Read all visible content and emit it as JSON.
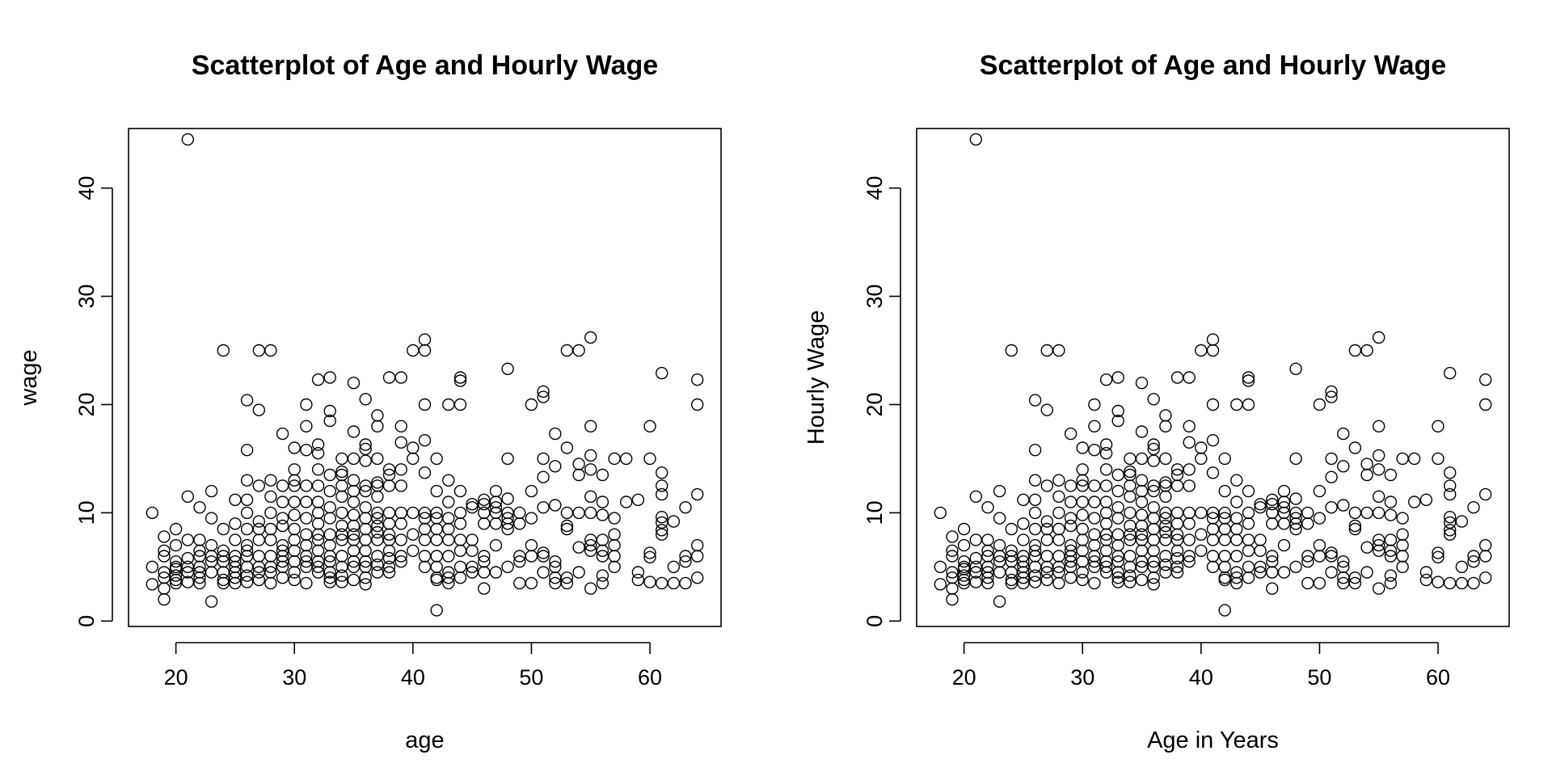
{
  "chart_data": [
    {
      "type": "scatter",
      "title": "Scatterplot of Age and Hourly Wage",
      "xlabel": "age",
      "ylabel": "wage",
      "xlim": [
        16,
        66
      ],
      "ylim": [
        -0.5,
        45.5
      ],
      "xticks": [
        20,
        30,
        40,
        50,
        60
      ],
      "yticks": [
        0,
        10,
        20,
        30,
        40
      ],
      "grid": false,
      "points_ref": "shared.points"
    },
    {
      "type": "scatter",
      "title": "Scatterplot of Age and Hourly Wage",
      "xlabel": "Age in Years",
      "ylabel": "Hourly Wage",
      "xlim": [
        16,
        66
      ],
      "ylim": [
        -0.5,
        45.5
      ],
      "xticks": [
        20,
        30,
        40,
        50,
        60
      ],
      "yticks": [
        0,
        10,
        20,
        30,
        40
      ],
      "grid": false,
      "points_ref": "shared.points"
    }
  ],
  "shared": {
    "points": [
      [
        18,
        10.0
      ],
      [
        18,
        5.0
      ],
      [
        18,
        3.4
      ],
      [
        19,
        7.8
      ],
      [
        19,
        6.5
      ],
      [
        19,
        6.0
      ],
      [
        19,
        4.5
      ],
      [
        19,
        4.0
      ],
      [
        19,
        3.0
      ],
      [
        19,
        2.0
      ],
      [
        20,
        8.5
      ],
      [
        20,
        7.0
      ],
      [
        20,
        5.5
      ],
      [
        20,
        5.0
      ],
      [
        20,
        4.8
      ],
      [
        20,
        4.2
      ],
      [
        20,
        3.8
      ],
      [
        20,
        3.5
      ],
      [
        21,
        44.5
      ],
      [
        21,
        11.5
      ],
      [
        21,
        7.5
      ],
      [
        21,
        5.8
      ],
      [
        21,
        5.0
      ],
      [
        21,
        4.5
      ],
      [
        21,
        3.6
      ],
      [
        22,
        10.5
      ],
      [
        22,
        7.5
      ],
      [
        22,
        6.5
      ],
      [
        22,
        6.0
      ],
      [
        22,
        5.0
      ],
      [
        22,
        4.5
      ],
      [
        22,
        4.0
      ],
      [
        22,
        3.5
      ],
      [
        23,
        12.0
      ],
      [
        23,
        9.5
      ],
      [
        23,
        7.0
      ],
      [
        23,
        6.0
      ],
      [
        23,
        5.5
      ],
      [
        23,
        4.5
      ],
      [
        23,
        1.8
      ],
      [
        24,
        25.0
      ],
      [
        24,
        8.5
      ],
      [
        24,
        6.5
      ],
      [
        24,
        6.0
      ],
      [
        24,
        5.5
      ],
      [
        24,
        4.5
      ],
      [
        24,
        3.8
      ],
      [
        24,
        3.5
      ],
      [
        25,
        11.2
      ],
      [
        25,
        9.0
      ],
      [
        25,
        7.5
      ],
      [
        25,
        6.0
      ],
      [
        25,
        5.5
      ],
      [
        25,
        5.0
      ],
      [
        25,
        4.5
      ],
      [
        25,
        4.0
      ],
      [
        25,
        3.5
      ],
      [
        26,
        20.4
      ],
      [
        26,
        15.8
      ],
      [
        26,
        13.0
      ],
      [
        26,
        11.2
      ],
      [
        26,
        10.0
      ],
      [
        26,
        8.5
      ],
      [
        26,
        7.0
      ],
      [
        26,
        6.5
      ],
      [
        26,
        6.0
      ],
      [
        26,
        5.0
      ],
      [
        26,
        4.2
      ],
      [
        26,
        3.6
      ],
      [
        27,
        25.0
      ],
      [
        27,
        19.5
      ],
      [
        27,
        12.5
      ],
      [
        27,
        9.2
      ],
      [
        27,
        8.5
      ],
      [
        27,
        7.5
      ],
      [
        27,
        6.0
      ],
      [
        27,
        5.0
      ],
      [
        27,
        4.5
      ],
      [
        27,
        3.8
      ],
      [
        28,
        25.0
      ],
      [
        28,
        13.0
      ],
      [
        28,
        11.5
      ],
      [
        28,
        10.0
      ],
      [
        28,
        8.5
      ],
      [
        28,
        7.5
      ],
      [
        28,
        6.0
      ],
      [
        28,
        5.0
      ],
      [
        28,
        4.5
      ],
      [
        28,
        3.5
      ],
      [
        29,
        17.3
      ],
      [
        29,
        12.5
      ],
      [
        29,
        11.0
      ],
      [
        29,
        9.5
      ],
      [
        29,
        8.8
      ],
      [
        29,
        7.0
      ],
      [
        29,
        6.5
      ],
      [
        29,
        6.0
      ],
      [
        29,
        5.5
      ],
      [
        29,
        5.0
      ],
      [
        29,
        4.0
      ],
      [
        30,
        16.0
      ],
      [
        30,
        14.0
      ],
      [
        30,
        13.0
      ],
      [
        30,
        12.5
      ],
      [
        30,
        11.0
      ],
      [
        30,
        9.8
      ],
      [
        30,
        8.5
      ],
      [
        30,
        7.5
      ],
      [
        30,
        6.5
      ],
      [
        30,
        5.5
      ],
      [
        30,
        4.5
      ],
      [
        30,
        3.8
      ],
      [
        31,
        20.0
      ],
      [
        31,
        18.0
      ],
      [
        31,
        15.8
      ],
      [
        31,
        12.5
      ],
      [
        31,
        11.0
      ],
      [
        31,
        9.5
      ],
      [
        31,
        8.0
      ],
      [
        31,
        7.0
      ],
      [
        31,
        6.0
      ],
      [
        31,
        5.5
      ],
      [
        31,
        5.0
      ],
      [
        31,
        3.5
      ],
      [
        32,
        22.3
      ],
      [
        32,
        16.3
      ],
      [
        32,
        15.5
      ],
      [
        32,
        14.0
      ],
      [
        32,
        12.5
      ],
      [
        32,
        11.0
      ],
      [
        32,
        10.0
      ],
      [
        32,
        9.0
      ],
      [
        32,
        8.0
      ],
      [
        32,
        7.5
      ],
      [
        32,
        6.5
      ],
      [
        32,
        5.5
      ],
      [
        32,
        5.0
      ],
      [
        32,
        4.5
      ],
      [
        33,
        22.5
      ],
      [
        33,
        19.4
      ],
      [
        33,
        18.5
      ],
      [
        33,
        13.5
      ],
      [
        33,
        12.0
      ],
      [
        33,
        10.5
      ],
      [
        33,
        9.5
      ],
      [
        33,
        8.0
      ],
      [
        33,
        7.0
      ],
      [
        33,
        6.0
      ],
      [
        33,
        5.5
      ],
      [
        33,
        4.5
      ],
      [
        33,
        4.0
      ],
      [
        33,
        3.6
      ],
      [
        34,
        15.0
      ],
      [
        34,
        13.8
      ],
      [
        34,
        13.5
      ],
      [
        34,
        12.5
      ],
      [
        34,
        11.5
      ],
      [
        34,
        10.0
      ],
      [
        34,
        8.8
      ],
      [
        34,
        8.0
      ],
      [
        34,
        7.5
      ],
      [
        34,
        6.0
      ],
      [
        34,
        5.0
      ],
      [
        34,
        4.2
      ],
      [
        34,
        3.6
      ],
      [
        35,
        22.0
      ],
      [
        35,
        17.5
      ],
      [
        35,
        15.0
      ],
      [
        35,
        13.0
      ],
      [
        35,
        12.0
      ],
      [
        35,
        11.0
      ],
      [
        35,
        9.8
      ],
      [
        35,
        8.8
      ],
      [
        35,
        8.0
      ],
      [
        35,
        7.5
      ],
      [
        35,
        6.5
      ],
      [
        35,
        5.5
      ],
      [
        35,
        5.0
      ],
      [
        35,
        3.8
      ],
      [
        36,
        20.5
      ],
      [
        36,
        16.3
      ],
      [
        36,
        15.9
      ],
      [
        36,
        14.8
      ],
      [
        36,
        12.5
      ],
      [
        36,
        12.0
      ],
      [
        36,
        10.5
      ],
      [
        36,
        9.5
      ],
      [
        36,
        8.5
      ],
      [
        36,
        7.5
      ],
      [
        36,
        6.5
      ],
      [
        36,
        5.5
      ],
      [
        36,
        5.0
      ],
      [
        36,
        4.0
      ],
      [
        36,
        3.4
      ],
      [
        37,
        19.0
      ],
      [
        37,
        18.0
      ],
      [
        37,
        15.0
      ],
      [
        37,
        12.8
      ],
      [
        37,
        12.5
      ],
      [
        37,
        11.5
      ],
      [
        37,
        10.0
      ],
      [
        37,
        9.5
      ],
      [
        37,
        8.8
      ],
      [
        37,
        8.2
      ],
      [
        37,
        7.5
      ],
      [
        37,
        6.0
      ],
      [
        37,
        5.2
      ],
      [
        37,
        4.5
      ],
      [
        38,
        22.5
      ],
      [
        38,
        14.0
      ],
      [
        38,
        13.5
      ],
      [
        38,
        12.5
      ],
      [
        38,
        10.0
      ],
      [
        38,
        9.0
      ],
      [
        38,
        8.0
      ],
      [
        38,
        7.5
      ],
      [
        38,
        6.5
      ],
      [
        38,
        5.8
      ],
      [
        38,
        5.0
      ],
      [
        38,
        4.5
      ],
      [
        39,
        22.5
      ],
      [
        39,
        18.0
      ],
      [
        39,
        16.5
      ],
      [
        39,
        14.0
      ],
      [
        39,
        12.5
      ],
      [
        39,
        10.0
      ],
      [
        39,
        9.0
      ],
      [
        39,
        7.5
      ],
      [
        39,
        6.0
      ],
      [
        39,
        5.5
      ],
      [
        40,
        25.0
      ],
      [
        40,
        16.0
      ],
      [
        40,
        15.0
      ],
      [
        40,
        10.0
      ],
      [
        40,
        8.0
      ],
      [
        40,
        6.5
      ],
      [
        41,
        26.0
      ],
      [
        41,
        25.0
      ],
      [
        41,
        20.0
      ],
      [
        41,
        16.7
      ],
      [
        41,
        13.7
      ],
      [
        41,
        10.0
      ],
      [
        41,
        9.5
      ],
      [
        41,
        8.5
      ],
      [
        41,
        7.5
      ],
      [
        41,
        6.0
      ],
      [
        41,
        5.0
      ],
      [
        42,
        15.0
      ],
      [
        42,
        12.0
      ],
      [
        42,
        10.0
      ],
      [
        42,
        9.5
      ],
      [
        42,
        8.5
      ],
      [
        42,
        7.5
      ],
      [
        42,
        6.0
      ],
      [
        42,
        5.0
      ],
      [
        42,
        4.0
      ],
      [
        42,
        3.8
      ],
      [
        42,
        1.0
      ],
      [
        43,
        20.0
      ],
      [
        43,
        13.0
      ],
      [
        43,
        11.0
      ],
      [
        43,
        9.5
      ],
      [
        43,
        8.5
      ],
      [
        43,
        7.5
      ],
      [
        43,
        6.0
      ],
      [
        43,
        4.5
      ],
      [
        43,
        4.0
      ],
      [
        43,
        3.5
      ],
      [
        44,
        22.5
      ],
      [
        44,
        22.2
      ],
      [
        44,
        20.0
      ],
      [
        44,
        12.0
      ],
      [
        44,
        10.0
      ],
      [
        44,
        9.0
      ],
      [
        44,
        7.5
      ],
      [
        44,
        6.5
      ],
      [
        44,
        5.0
      ],
      [
        44,
        4.0
      ],
      [
        45,
        10.8
      ],
      [
        45,
        10.5
      ],
      [
        45,
        7.5
      ],
      [
        45,
        6.5
      ],
      [
        45,
        5.0
      ],
      [
        45,
        4.5
      ],
      [
        46,
        11.2
      ],
      [
        46,
        10.8
      ],
      [
        46,
        10.0
      ],
      [
        46,
        9.0
      ],
      [
        46,
        6.0
      ],
      [
        46,
        5.5
      ],
      [
        46,
        4.5
      ],
      [
        46,
        3.0
      ],
      [
        47,
        12.0
      ],
      [
        47,
        11.0
      ],
      [
        47,
        10.5
      ],
      [
        47,
        10.0
      ],
      [
        47,
        9.0
      ],
      [
        47,
        7.0
      ],
      [
        47,
        4.5
      ],
      [
        48,
        23.3
      ],
      [
        48,
        15.0
      ],
      [
        48,
        11.3
      ],
      [
        48,
        10.0
      ],
      [
        48,
        9.5
      ],
      [
        48,
        9.0
      ],
      [
        48,
        8.5
      ],
      [
        48,
        5.0
      ],
      [
        49,
        10.0
      ],
      [
        49,
        9.0
      ],
      [
        49,
        6.0
      ],
      [
        49,
        5.5
      ],
      [
        49,
        3.5
      ],
      [
        50,
        20.0
      ],
      [
        50,
        12.0
      ],
      [
        50,
        9.5
      ],
      [
        50,
        7.0
      ],
      [
        50,
        6.0
      ],
      [
        50,
        3.5
      ],
      [
        51,
        21.2
      ],
      [
        51,
        20.7
      ],
      [
        51,
        15.0
      ],
      [
        51,
        13.3
      ],
      [
        51,
        10.5
      ],
      [
        51,
        6.3
      ],
      [
        51,
        6.0
      ],
      [
        51,
        4.5
      ],
      [
        52,
        17.3
      ],
      [
        52,
        14.3
      ],
      [
        52,
        10.7
      ],
      [
        52,
        5.5
      ],
      [
        52,
        5.0
      ],
      [
        52,
        4.0
      ],
      [
        52,
        3.5
      ],
      [
        53,
        25.0
      ],
      [
        53,
        16.0
      ],
      [
        53,
        10.0
      ],
      [
        53,
        8.8
      ],
      [
        53,
        8.5
      ],
      [
        53,
        4.0
      ],
      [
        53,
        3.5
      ],
      [
        54,
        25.0
      ],
      [
        54,
        14.5
      ],
      [
        54,
        13.5
      ],
      [
        54,
        10.0
      ],
      [
        54,
        6.8
      ],
      [
        54,
        4.5
      ],
      [
        55,
        26.2
      ],
      [
        55,
        18.0
      ],
      [
        55,
        15.3
      ],
      [
        55,
        14.0
      ],
      [
        55,
        11.5
      ],
      [
        55,
        10.0
      ],
      [
        55,
        7.5
      ],
      [
        55,
        7.0
      ],
      [
        55,
        6.5
      ],
      [
        55,
        3.0
      ],
      [
        56,
        13.5
      ],
      [
        56,
        11.0
      ],
      [
        56,
        9.8
      ],
      [
        56,
        7.5
      ],
      [
        56,
        6.5
      ],
      [
        56,
        6.0
      ],
      [
        56,
        4.2
      ],
      [
        56,
        3.5
      ],
      [
        57,
        15.0
      ],
      [
        57,
        9.5
      ],
      [
        57,
        8.0
      ],
      [
        57,
        7.0
      ],
      [
        57,
        6.0
      ],
      [
        57,
        5.0
      ],
      [
        58,
        15.0
      ],
      [
        58,
        11.0
      ],
      [
        59,
        11.2
      ],
      [
        59,
        4.5
      ],
      [
        59,
        3.8
      ],
      [
        60,
        18.0
      ],
      [
        60,
        15.0
      ],
      [
        60,
        6.3
      ],
      [
        60,
        5.9
      ],
      [
        60,
        3.6
      ],
      [
        61,
        22.9
      ],
      [
        61,
        13.7
      ],
      [
        61,
        12.5
      ],
      [
        61,
        11.7
      ],
      [
        61,
        9.6
      ],
      [
        61,
        9.1
      ],
      [
        61,
        8.4
      ],
      [
        61,
        8.0
      ],
      [
        61,
        3.5
      ],
      [
        62,
        9.2
      ],
      [
        62,
        5.0
      ],
      [
        62,
        3.5
      ],
      [
        63,
        10.5
      ],
      [
        63,
        6.0
      ],
      [
        63,
        5.5
      ],
      [
        63,
        3.5
      ],
      [
        64,
        22.3
      ],
      [
        64,
        20.0
      ],
      [
        64,
        11.7
      ],
      [
        64,
        7.0
      ],
      [
        64,
        6.0
      ],
      [
        64,
        4.0
      ]
    ]
  }
}
